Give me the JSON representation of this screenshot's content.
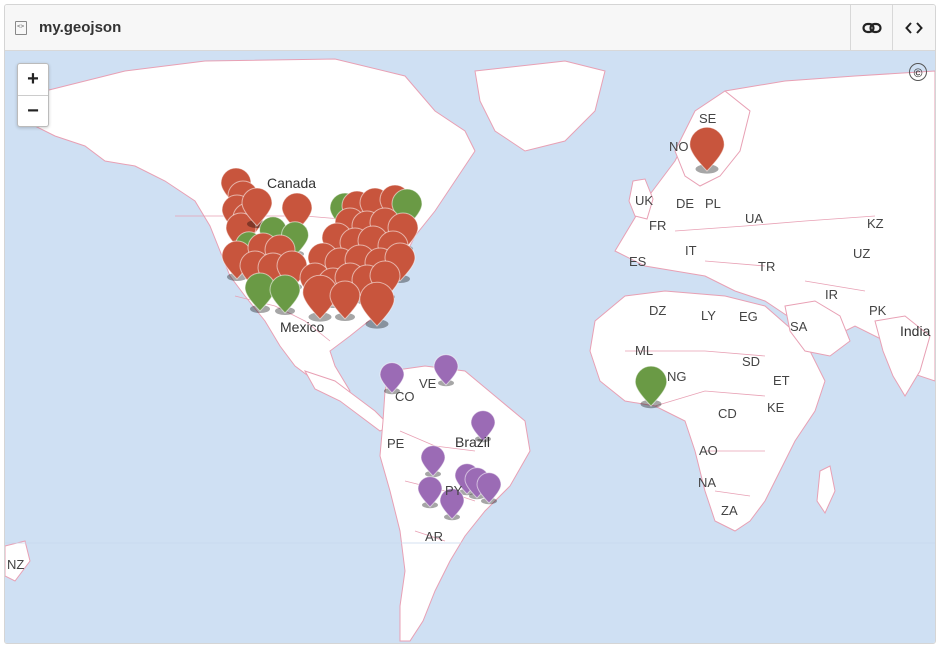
{
  "header": {
    "filename": "my.geojson",
    "link_icon": "link-icon",
    "code_icon": "code-icon"
  },
  "map": {
    "zoom_in": "+",
    "zoom_out": "−",
    "attribution": "©",
    "colors": {
      "water": "#cfe0f3",
      "land": "#ffffff",
      "border": "#e8a0b4",
      "marker_red": "#c8553d",
      "marker_green": "#6a9a45",
      "marker_purple": "#9b6bb5"
    },
    "labels": {
      "canada": "Canada",
      "mexico": "Mexico",
      "brazil": "Brazil",
      "india": "India",
      "se": "SE",
      "no": "NO",
      "uk": "UK",
      "de": "DE",
      "pl": "PL",
      "fr": "FR",
      "ua": "UA",
      "kz": "KZ",
      "it": "IT",
      "uz": "UZ",
      "es": "ES",
      "tr": "TR",
      "ir": "IR",
      "dz": "DZ",
      "ly": "LY",
      "eg": "EG",
      "sa": "SA",
      "pk": "PK",
      "ml": "ML",
      "sd": "SD",
      "ng": "NG",
      "et": "ET",
      "cd": "CD",
      "ke": "KE",
      "ao": "AO",
      "na": "NA",
      "za": "ZA",
      "co": "CO",
      "ve": "VE",
      "pe": "PE",
      "py": "PY",
      "ar": "AR",
      "nz": "NZ"
    }
  }
}
